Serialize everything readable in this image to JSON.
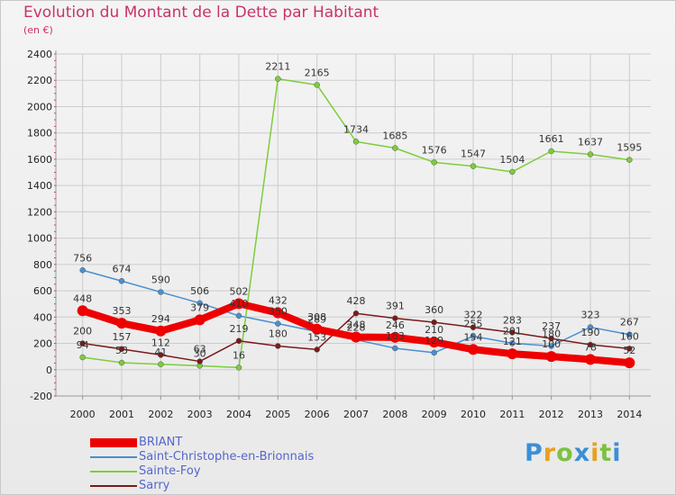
{
  "title": "Evolution du Montant de la Dette par Habitant",
  "subtitle": "(en €)",
  "logo": {
    "text": "Proxiti",
    "colors": [
      "#3a8fd6",
      "#e8a020",
      "#7cc242",
      "#3a8fd6",
      "#e8a020",
      "#7cc242",
      "#3a8fd6"
    ]
  },
  "chart_data": {
    "type": "line",
    "x": [
      "2000",
      "2001",
      "2002",
      "2003",
      "2004",
      "2005",
      "2006",
      "2007",
      "2008",
      "2009",
      "2010",
      "2011",
      "2012",
      "2013",
      "2014"
    ],
    "ylim": [
      -200,
      2400
    ],
    "yticks": [
      "-200",
      "0",
      "200",
      "400",
      "600",
      "800",
      "1000",
      "1200",
      "1400",
      "1600",
      "1800",
      "2000",
      "2200",
      "2400"
    ],
    "grid": true,
    "legend_position": "bottom-left",
    "series": [
      {
        "name": "BRIANT",
        "color": "#ee0000",
        "values": [
          448,
          353,
          294,
          379,
          502,
          432,
          308,
          248,
          246,
          210,
          154,
          121,
          100,
          78,
          52
        ],
        "labels": [
          "448",
          "353",
          "294",
          "379",
          "502",
          "432",
          "308",
          "248",
          "246",
          "210",
          "154",
          "121",
          "100",
          "78",
          "52"
        ]
      },
      {
        "name": "Saint-Christophe-en-Brionnais",
        "color": "#4a8fd0",
        "values": [
          756,
          674,
          590,
          506,
          410,
          350,
          289,
          228,
          163,
          129,
          255,
          201,
          180,
          323,
          267
        ],
        "labels": [
          "756",
          "674",
          "590",
          "506",
          "410",
          "350",
          "289",
          "228",
          "163",
          "129",
          "255",
          "201",
          "180",
          "323",
          "267"
        ]
      },
      {
        "name": "Sainte-Foy",
        "color": "#7dcd3a",
        "values": [
          94,
          53,
          41,
          30,
          16,
          2211,
          2165,
          1734,
          1685,
          1576,
          1547,
          1504,
          1661,
          1637,
          1595
        ],
        "labels": [
          "94",
          "53",
          "41",
          "30",
          "16",
          "2211",
          "2165",
          "1734",
          "1685",
          "1576",
          "1547",
          "1504",
          "1661",
          "1637",
          "1595"
        ]
      },
      {
        "name": "Sarry",
        "color": "#7a1a1a",
        "values": [
          200,
          157,
          112,
          63,
          219,
          180,
          153,
          428,
          391,
          360,
          322,
          283,
          237,
          190,
          160
        ],
        "labels": [
          "200",
          "157",
          "112",
          "63",
          "219",
          "180",
          "153",
          "428",
          "391",
          "360",
          "322",
          "283",
          "237",
          "190",
          "160"
        ]
      }
    ]
  }
}
